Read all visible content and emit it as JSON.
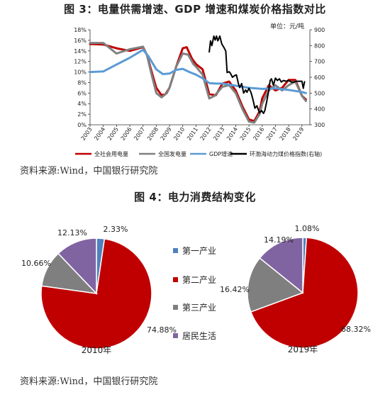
{
  "fig3_title": "图 3：电量供需增速、GDP 增速和煤炭价格指数对比",
  "fig4_title": "图 4：电力消费结构变化",
  "source_label": "资料来源:Wind，中国银行研究院",
  "colors": {
    "red": "#c00000",
    "gray": "#808080",
    "blue": "#5b9bd5",
    "black": "#000000",
    "purple": "#8064a2"
  },
  "chart_data": [
    {
      "type": "line",
      "title": "图 3：电量供需增速、GDP 增速和煤炭价格指数对比",
      "unit_right": "单位：元/吨",
      "x_ticks": [
        "2003",
        "2004",
        "2005",
        "2006",
        "2007",
        "2008",
        "2009",
        "2010",
        "2011",
        "2012",
        "2013",
        "2014",
        "2015",
        "2016",
        "2017",
        "2018",
        "2019"
      ],
      "x_range": [
        2003,
        2019.6
      ],
      "left_axis": {
        "ticks": [
          "0%",
          "2%",
          "4%",
          "6%",
          "8%",
          "10%",
          "12%",
          "14%",
          "16%",
          "18%"
        ],
        "range": [
          0,
          18
        ]
      },
      "right_axis": {
        "ticks": [
          "300",
          "400",
          "500",
          "600",
          "700",
          "800",
          "900"
        ],
        "range": [
          300,
          900
        ]
      },
      "legend": [
        "全社会用电量",
        "全国发电量",
        "GDP增速",
        "环渤海动力煤价格指数(右轴)"
      ],
      "series": [
        {
          "name": "全社会用电量",
          "axis": "left",
          "color": "#c00000",
          "points": [
            [
              2003,
              15.3
            ],
            [
              2004,
              15.2
            ],
            [
              2005,
              14.5
            ],
            [
              2006,
              14.0
            ],
            [
              2007,
              14.7
            ],
            [
              2007.3,
              13.2
            ],
            [
              2007.6,
              10.5
            ],
            [
              2008,
              7.0
            ],
            [
              2008.4,
              5.6
            ],
            [
              2008.7,
              5.8
            ],
            [
              2009,
              7.0
            ],
            [
              2009.5,
              11.0
            ],
            [
              2010,
              14.5
            ],
            [
              2010.3,
              14.7
            ],
            [
              2010.7,
              12.5
            ],
            [
              2011,
              11.5
            ],
            [
              2011.5,
              10.5
            ],
            [
              2012,
              5.8
            ],
            [
              2012.5,
              5.6
            ],
            [
              2013,
              7.8
            ],
            [
              2013.5,
              8.2
            ],
            [
              2014,
              6.5
            ],
            [
              2014.5,
              3.5
            ],
            [
              2015,
              1.0
            ],
            [
              2015.4,
              0.7
            ],
            [
              2015.8,
              2.5
            ],
            [
              2016,
              5.0
            ],
            [
              2016.5,
              7.5
            ],
            [
              2017,
              6.5
            ],
            [
              2017.5,
              7.0
            ],
            [
              2018,
              8.5
            ],
            [
              2018.5,
              8.5
            ],
            [
              2019,
              5.5
            ],
            [
              2019.3,
              4.8
            ]
          ]
        },
        {
          "name": "全国发电量",
          "axis": "left",
          "color": "#808080",
          "points": [
            [
              2003,
              15.5
            ],
            [
              2004,
              15.5
            ],
            [
              2005,
              13.5
            ],
            [
              2006,
              14.3
            ],
            [
              2007,
              14.8
            ],
            [
              2007.3,
              13.2
            ],
            [
              2007.6,
              10.0
            ],
            [
              2008,
              6.0
            ],
            [
              2008.4,
              5.2
            ],
            [
              2008.8,
              6.0
            ],
            [
              2009,
              7.0
            ],
            [
              2009.5,
              11.0
            ],
            [
              2010,
              13.5
            ],
            [
              2010.4,
              13.3
            ],
            [
              2010.8,
              11.5
            ],
            [
              2011,
              11.0
            ],
            [
              2011.5,
              9.5
            ],
            [
              2012,
              5.0
            ],
            [
              2012.4,
              5.5
            ],
            [
              2013,
              7.2
            ],
            [
              2013.5,
              7.5
            ],
            [
              2014,
              6.0
            ],
            [
              2014.5,
              3.0
            ],
            [
              2015,
              0.6
            ],
            [
              2015.4,
              0.4
            ],
            [
              2015.8,
              2.0
            ],
            [
              2016,
              4.0
            ],
            [
              2016.5,
              6.5
            ],
            [
              2017,
              7.5
            ],
            [
              2017.5,
              6.5
            ],
            [
              2018,
              7.5
            ],
            [
              2018.5,
              8.2
            ],
            [
              2019,
              5.5
            ],
            [
              2019.3,
              4.5
            ]
          ]
        },
        {
          "name": "GDP增速",
          "axis": "left",
          "color": "#5b9bd5",
          "points": [
            [
              2003,
              10.0
            ],
            [
              2004,
              10.1
            ],
            [
              2005,
              11.4
            ],
            [
              2006,
              12.7
            ],
            [
              2007,
              14.2
            ],
            [
              2007.4,
              13.0
            ],
            [
              2008,
              10.5
            ],
            [
              2008.5,
              9.6
            ],
            [
              2009,
              9.7
            ],
            [
              2009.5,
              10.4
            ],
            [
              2010,
              10.6
            ],
            [
              2010.5,
              10.0
            ],
            [
              2011,
              9.5
            ],
            [
              2011.5,
              8.8
            ],
            [
              2012,
              7.9
            ],
            [
              2012.5,
              7.8
            ],
            [
              2013,
              7.8
            ],
            [
              2014,
              7.4
            ],
            [
              2015,
              7.0
            ],
            [
              2016,
              6.8
            ],
            [
              2017,
              6.9
            ],
            [
              2018,
              6.6
            ],
            [
              2019,
              6.2
            ],
            [
              2019.3,
              6.0
            ]
          ]
        },
        {
          "name": "环渤海动力煤价格指数(右轴)",
          "axis": "right",
          "color": "#000000",
          "points": [
            [
              2012.0,
              760
            ],
            [
              2012.1,
              830
            ],
            [
              2012.2,
              800
            ],
            [
              2012.35,
              860
            ],
            [
              2012.45,
              835
            ],
            [
              2012.55,
              860
            ],
            [
              2012.65,
              830
            ],
            [
              2012.8,
              860
            ],
            [
              2012.95,
              810
            ],
            [
              2013.1,
              790
            ],
            [
              2013.25,
              765
            ],
            [
              2013.35,
              630
            ],
            [
              2013.5,
              635
            ],
            [
              2013.6,
              625
            ],
            [
              2013.75,
              600
            ],
            [
              2013.9,
              610
            ],
            [
              2014.05,
              615
            ],
            [
              2014.2,
              560
            ],
            [
              2014.3,
              535
            ],
            [
              2014.45,
              560
            ],
            [
              2014.6,
              500
            ],
            [
              2014.75,
              520
            ],
            [
              2014.85,
              505
            ],
            [
              2015.0,
              530
            ],
            [
              2015.15,
              505
            ],
            [
              2015.3,
              460
            ],
            [
              2015.45,
              405
            ],
            [
              2015.6,
              420
            ],
            [
              2015.8,
              375
            ],
            [
              2015.95,
              390
            ],
            [
              2016.1,
              372
            ],
            [
              2016.2,
              390
            ],
            [
              2016.35,
              450
            ],
            [
              2016.5,
              520
            ],
            [
              2016.6,
              580
            ],
            [
              2016.7,
              590
            ],
            [
              2016.85,
              550
            ],
            [
              2017.0,
              595
            ],
            [
              2017.15,
              580
            ],
            [
              2017.3,
              590
            ],
            [
              2017.45,
              570
            ],
            [
              2017.6,
              580
            ],
            [
              2017.8,
              575
            ],
            [
              2018.0,
              580
            ],
            [
              2018.2,
              570
            ],
            [
              2018.4,
              570
            ],
            [
              2018.6,
              575
            ],
            [
              2018.8,
              575
            ],
            [
              2019.0,
              575
            ],
            [
              2019.1,
              530
            ],
            [
              2019.2,
              572
            ]
          ]
        }
      ]
    },
    {
      "type": "pie",
      "name": "2010年",
      "legend": [
        "第一产业",
        "第二产业",
        "第三产业",
        "居民生活"
      ],
      "slices": [
        {
          "label": "第一产业",
          "value": 2.33,
          "text": "2.33%",
          "color": "#4f81bd"
        },
        {
          "label": "第二产业",
          "value": 74.88,
          "text": "74.88%",
          "color": "#c00000"
        },
        {
          "label": "第三产业",
          "value": 10.66,
          "text": "10.66%",
          "color": "#7f7f7f"
        },
        {
          "label": "居民生活",
          "value": 12.13,
          "text": "12.13%",
          "color": "#8064a2"
        }
      ]
    },
    {
      "type": "pie",
      "name": "2019年",
      "legend": [
        "第一产业",
        "第二产业",
        "第三产业",
        "居民生活"
      ],
      "slices": [
        {
          "label": "第一产业",
          "value": 1.08,
          "text": "1.08%",
          "color": "#4f81bd"
        },
        {
          "label": "第二产业",
          "value": 68.32,
          "text": "68.32%",
          "color": "#c00000"
        },
        {
          "label": "第三产业",
          "value": 16.42,
          "text": "16.42%",
          "color": "#7f7f7f"
        },
        {
          "label": "居民生活",
          "value": 14.19,
          "text": "14.19%",
          "color": "#8064a2"
        }
      ]
    }
  ]
}
